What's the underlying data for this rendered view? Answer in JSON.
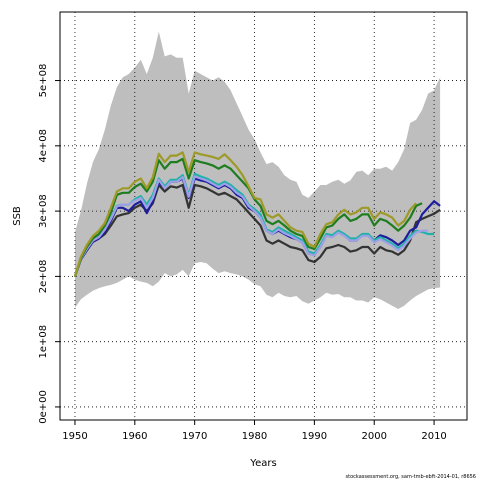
{
  "chart_data": {
    "type": "line",
    "title": "",
    "xlabel": "Years",
    "ylabel": "SSB",
    "xlim": [
      1947.5,
      2015.5
    ],
    "ylim": [
      -20000000,
      605000000
    ],
    "x_ticks": [
      1950,
      1960,
      1970,
      1980,
      1990,
      2000,
      2010
    ],
    "x_tick_labels": [
      "1950",
      "1960",
      "1970",
      "1980",
      "1990",
      "2000",
      "2010"
    ],
    "y_ticks": [
      0,
      100000000,
      200000000,
      300000000,
      400000000,
      500000000
    ],
    "y_tick_labels": [
      "0e+00",
      "1e+08",
      "2e+08",
      "3e+08",
      "4e+08",
      "5e+08"
    ],
    "grid": "dotted at tick positions",
    "footnote": "stockassessment.org, sam-tmb-ebft-2014-01, r8656",
    "band": {
      "color": "#bebebe",
      "x_start": 1950,
      "upper": [
        268000000,
        300000000,
        342000000,
        375000000,
        395000000,
        425000000,
        462000000,
        490000000,
        505000000,
        510000000,
        520000000,
        532000000,
        510000000,
        535000000,
        575000000,
        537000000,
        540000000,
        535000000,
        535000000,
        480000000,
        515000000,
        510000000,
        505000000,
        500000000,
        505000000,
        498000000,
        485000000,
        465000000,
        445000000,
        425000000,
        410000000,
        390000000,
        372000000,
        375000000,
        368000000,
        355000000,
        348000000,
        345000000,
        325000000,
        320000000,
        330000000,
        340000000,
        340000000,
        345000000,
        348000000,
        342000000,
        347000000,
        360000000,
        362000000,
        355000000,
        365000000,
        365000000,
        368000000,
        362000000,
        375000000,
        395000000,
        435000000,
        440000000,
        455000000,
        480000000,
        485000000,
        505000000
      ],
      "lower": [
        152000000,
        165000000,
        172000000,
        178000000,
        182000000,
        185000000,
        187000000,
        190000000,
        195000000,
        200000000,
        195000000,
        192000000,
        190000000,
        185000000,
        192000000,
        205000000,
        200000000,
        203000000,
        210000000,
        200000000,
        220000000,
        222000000,
        220000000,
        212000000,
        205000000,
        208000000,
        205000000,
        203000000,
        200000000,
        195000000,
        188000000,
        185000000,
        172000000,
        168000000,
        175000000,
        170000000,
        168000000,
        170000000,
        162000000,
        158000000,
        163000000,
        168000000,
        175000000,
        172000000,
        173000000,
        168000000,
        168000000,
        163000000,
        163000000,
        160000000,
        168000000,
        165000000,
        160000000,
        155000000,
        150000000,
        155000000,
        163000000,
        170000000,
        175000000,
        180000000,
        182000000,
        183000000
      ]
    },
    "series": [
      {
        "color": "#333333",
        "x_start": 1950,
        "values": [
          200000000,
          226000000,
          240000000,
          253000000,
          258000000,
          265000000,
          278000000,
          292000000,
          295000000,
          297000000,
          305000000,
          310000000,
          300000000,
          312000000,
          340000000,
          330000000,
          338000000,
          336000000,
          340000000,
          305000000,
          340000000,
          338000000,
          335000000,
          330000000,
          325000000,
          328000000,
          323000000,
          318000000,
          308000000,
          298000000,
          288000000,
          278000000,
          255000000,
          250000000,
          255000000,
          250000000,
          245000000,
          243000000,
          240000000,
          225000000,
          222000000,
          230000000,
          243000000,
          245000000,
          248000000,
          245000000,
          238000000,
          240000000,
          245000000,
          245000000,
          235000000,
          245000000,
          240000000,
          238000000,
          233000000,
          240000000,
          255000000,
          283000000,
          288000000,
          292000000,
          296000000,
          302000000
        ]
      },
      {
        "color": "#1d1d9e",
        "x_start": 1950,
        "values": [
          200000000,
          226000000,
          240000000,
          253000000,
          258000000,
          268000000,
          285000000,
          305000000,
          305000000,
          300000000,
          310000000,
          315000000,
          297000000,
          315000000,
          345000000,
          335000000,
          345000000,
          345000000,
          350000000,
          320000000,
          350000000,
          347000000,
          345000000,
          340000000,
          335000000,
          340000000,
          335000000,
          325000000,
          320000000,
          305000000,
          300000000,
          290000000,
          270000000,
          265000000,
          270000000,
          265000000,
          260000000,
          257000000,
          252000000,
          235000000,
          233000000,
          245000000,
          263000000,
          262000000,
          268000000,
          263000000,
          255000000,
          255000000,
          263000000,
          262000000,
          255000000,
          263000000,
          260000000,
          255000000,
          248000000,
          255000000,
          270000000,
          275000000,
          295000000,
          305000000,
          315000000,
          308000000
        ]
      },
      {
        "color": "#20b2aa",
        "x_start": 1950,
        "values": [
          200000000,
          228000000,
          243000000,
          256000000,
          262000000,
          273000000,
          290000000,
          308000000,
          310000000,
          310000000,
          318000000,
          323000000,
          310000000,
          325000000,
          350000000,
          338000000,
          348000000,
          348000000,
          355000000,
          325000000,
          357000000,
          353000000,
          350000000,
          345000000,
          340000000,
          345000000,
          340000000,
          332000000,
          325000000,
          310000000,
          303000000,
          295000000,
          272000000,
          268000000,
          275000000,
          270000000,
          265000000,
          260000000,
          255000000,
          238000000,
          235000000,
          248000000,
          265000000,
          263000000,
          270000000,
          265000000,
          258000000,
          258000000,
          265000000,
          265000000,
          255000000,
          260000000,
          255000000,
          250000000,
          243000000,
          250000000,
          262000000,
          270000000,
          268000000,
          265000000,
          265000000
        ]
      },
      {
        "color": "#a0a0e6",
        "x_start": 1950,
        "values": [
          200000000,
          227000000,
          242000000,
          255000000,
          260000000,
          272000000,
          288000000,
          307000000,
          310000000,
          310000000,
          316000000,
          320000000,
          305000000,
          320000000,
          348000000,
          335000000,
          345000000,
          345000000,
          352000000,
          322000000,
          353000000,
          350000000,
          347000000,
          342000000,
          337000000,
          342000000,
          337000000,
          328000000,
          322000000,
          308000000,
          300000000,
          290000000,
          270000000,
          265000000,
          272000000,
          266000000,
          262000000,
          257000000,
          252000000,
          235000000,
          232000000,
          245000000,
          262000000,
          260000000,
          267000000,
          262000000,
          255000000,
          255000000,
          262000000,
          262000000,
          252000000,
          257000000,
          252000000,
          247000000,
          240000000,
          247000000,
          258000000,
          267000000,
          270000000,
          270000000
        ]
      },
      {
        "color": "#1e7d1e",
        "x_start": 1950,
        "values": [
          200000000,
          228000000,
          245000000,
          258000000,
          265000000,
          278000000,
          298000000,
          325000000,
          328000000,
          328000000,
          337000000,
          342000000,
          330000000,
          345000000,
          378000000,
          365000000,
          375000000,
          375000000,
          380000000,
          350000000,
          378000000,
          375000000,
          373000000,
          370000000,
          365000000,
          370000000,
          365000000,
          355000000,
          345000000,
          335000000,
          318000000,
          308000000,
          285000000,
          280000000,
          285000000,
          278000000,
          270000000,
          265000000,
          262000000,
          245000000,
          242000000,
          258000000,
          275000000,
          278000000,
          288000000,
          295000000,
          285000000,
          288000000,
          295000000,
          295000000,
          278000000,
          288000000,
          285000000,
          278000000,
          270000000,
          278000000,
          290000000,
          308000000,
          312000000
        ]
      },
      {
        "color": "#9e9a28",
        "x_start": 1950,
        "values": [
          200000000,
          230000000,
          248000000,
          262000000,
          270000000,
          282000000,
          305000000,
          330000000,
          335000000,
          335000000,
          345000000,
          350000000,
          335000000,
          352000000,
          388000000,
          375000000,
          385000000,
          385000000,
          390000000,
          360000000,
          390000000,
          387000000,
          385000000,
          383000000,
          380000000,
          387000000,
          378000000,
          368000000,
          355000000,
          338000000,
          320000000,
          318000000,
          295000000,
          290000000,
          295000000,
          285000000,
          275000000,
          270000000,
          268000000,
          250000000,
          245000000,
          265000000,
          280000000,
          283000000,
          295000000,
          302000000,
          295000000,
          298000000,
          305000000,
          305000000,
          288000000,
          298000000,
          295000000,
          290000000,
          278000000,
          285000000,
          302000000,
          312000000
        ]
      }
    ]
  }
}
